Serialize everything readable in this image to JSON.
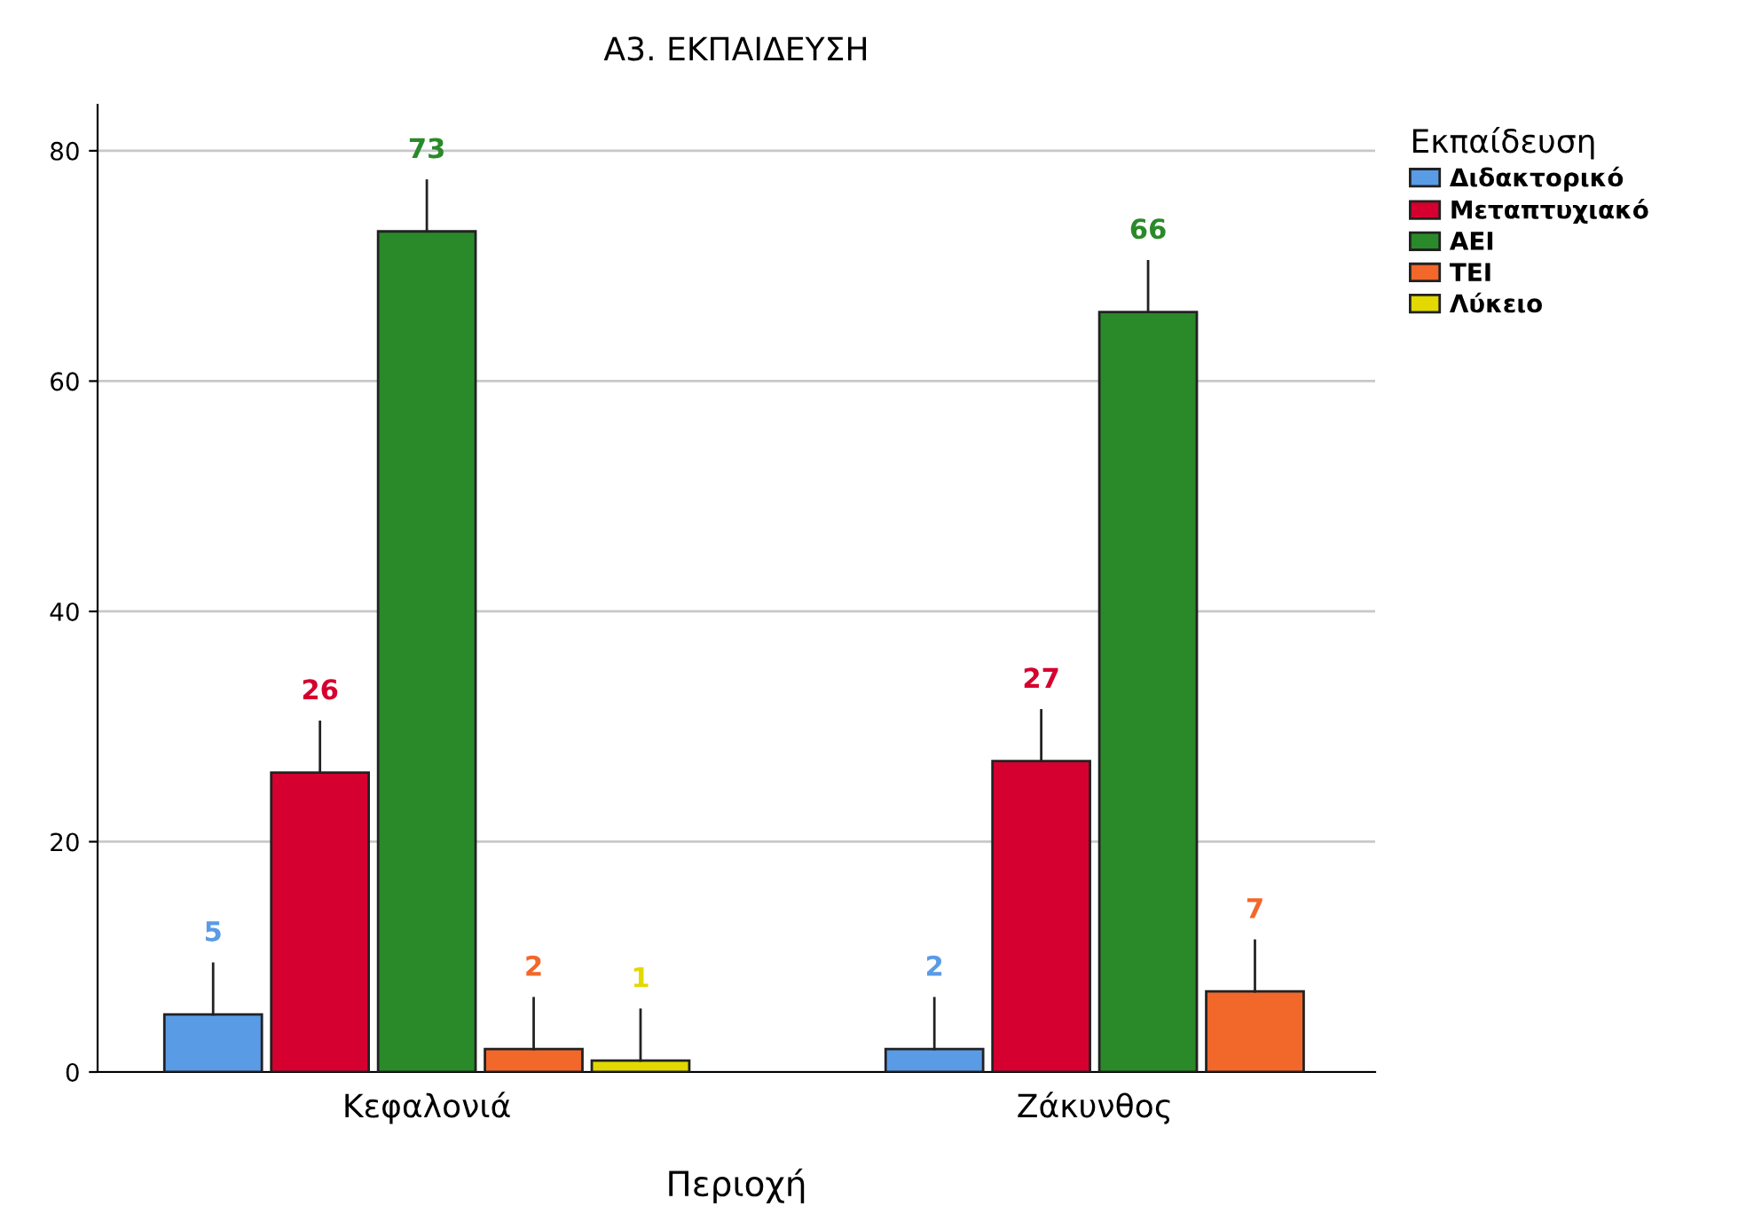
{
  "chart_data": {
    "type": "bar",
    "title": "Α3. ΕΚΠΑΙΔΕΥΣΗ",
    "xlabel": "Περιοχή",
    "legend_title": "Εκπαίδευση",
    "categories": [
      "Κεφαλονιά",
      "Ζάκυνθος"
    ],
    "series": [
      {
        "name": "Διδακτορικό",
        "color": "#5a9be6",
        "values": [
          5,
          2
        ]
      },
      {
        "name": "Μεταπτυχιακό",
        "color": "#d5002f",
        "values": [
          26,
          27
        ]
      },
      {
        "name": "ΑΕΙ",
        "color": "#2a8a2a",
        "values": [
          73,
          66
        ]
      },
      {
        "name": "ΤΕΙ",
        "color": "#f2672a",
        "values": [
          2,
          7
        ]
      },
      {
        "name": "Λύκειο",
        "color": "#e3d800",
        "values": [
          1,
          null
        ]
      }
    ],
    "ylim": [
      0,
      84
    ],
    "yticks": [
      0,
      20,
      40,
      60,
      80
    ],
    "grid": "y",
    "legend": "top right",
    "data_labels": true
  }
}
